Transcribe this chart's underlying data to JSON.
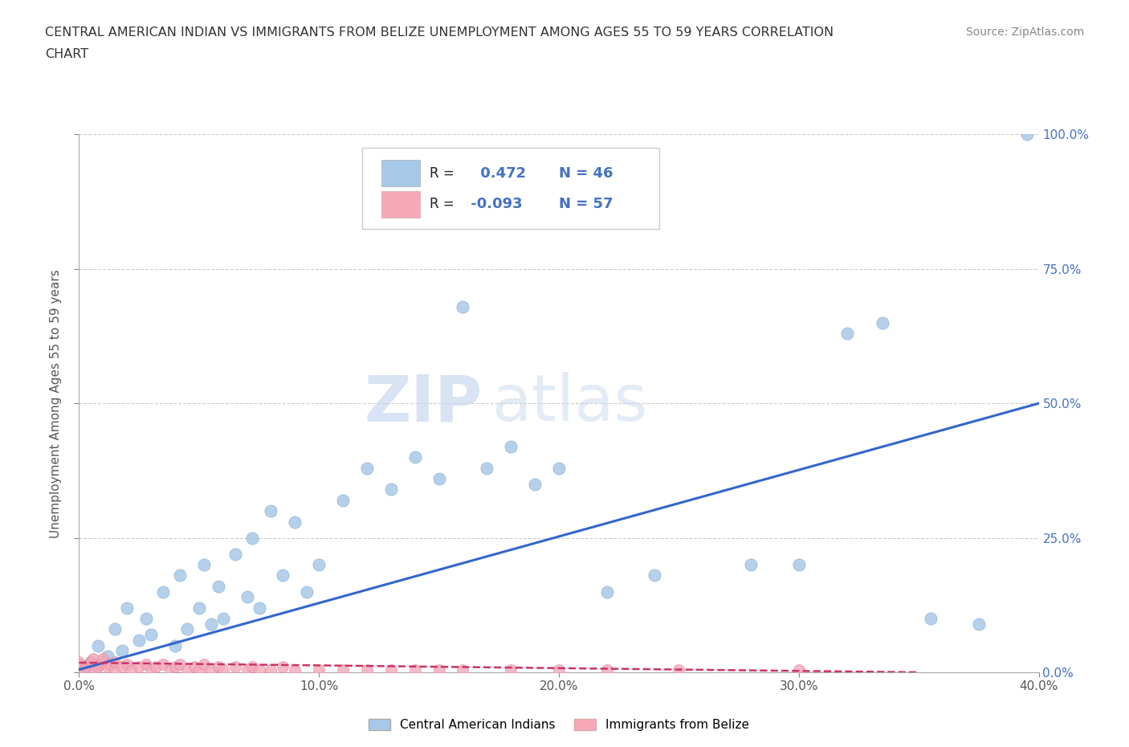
{
  "title_line1": "CENTRAL AMERICAN INDIAN VS IMMIGRANTS FROM BELIZE UNEMPLOYMENT AMONG AGES 55 TO 59 YEARS CORRELATION",
  "title_line2": "CHART",
  "source_text": "Source: ZipAtlas.com",
  "ylabel": "Unemployment Among Ages 55 to 59 years",
  "r_blue": 0.472,
  "n_blue": 46,
  "r_pink": -0.093,
  "n_pink": 57,
  "blue_color": "#a8c8e8",
  "pink_color": "#f4a8b8",
  "trend_blue_color": "#3366cc",
  "trend_pink_color": "#cc3366",
  "xlim": [
    0.0,
    0.4
  ],
  "ylim": [
    0.0,
    1.0
  ],
  "xtick_labels": [
    "0.0%",
    "10.0%",
    "20.0%",
    "30.0%",
    "40.0%"
  ],
  "xtick_vals": [
    0.0,
    0.1,
    0.2,
    0.3,
    0.4
  ],
  "ytick_labels": [
    "0.0%",
    "25.0%",
    "50.0%",
    "75.0%",
    "100.0%"
  ],
  "ytick_vals": [
    0.0,
    0.25,
    0.5,
    0.75,
    1.0
  ],
  "watermark_zip": "ZIP",
  "watermark_atlas": "atlas",
  "blue_scatter_x": [
    0.005,
    0.008,
    0.012,
    0.015,
    0.018,
    0.02,
    0.025,
    0.028,
    0.03,
    0.035,
    0.04,
    0.042,
    0.045,
    0.05,
    0.052,
    0.055,
    0.058,
    0.06,
    0.065,
    0.07,
    0.072,
    0.075,
    0.08,
    0.085,
    0.09,
    0.095,
    0.1,
    0.11,
    0.12,
    0.13,
    0.14,
    0.15,
    0.16,
    0.17,
    0.18,
    0.19,
    0.2,
    0.22,
    0.24,
    0.28,
    0.3,
    0.32,
    0.335,
    0.355,
    0.375,
    0.395
  ],
  "blue_scatter_y": [
    0.02,
    0.05,
    0.03,
    0.08,
    0.04,
    0.12,
    0.06,
    0.1,
    0.07,
    0.15,
    0.05,
    0.18,
    0.08,
    0.12,
    0.2,
    0.09,
    0.16,
    0.1,
    0.22,
    0.14,
    0.25,
    0.12,
    0.3,
    0.18,
    0.28,
    0.15,
    0.2,
    0.32,
    0.38,
    0.34,
    0.4,
    0.36,
    0.68,
    0.38,
    0.42,
    0.35,
    0.38,
    0.15,
    0.18,
    0.2,
    0.2,
    0.63,
    0.65,
    0.1,
    0.09,
    1.0
  ],
  "pink_scatter_x": [
    0.0,
    0.0,
    0.0,
    0.0,
    0.0,
    0.0,
    0.002,
    0.003,
    0.004,
    0.005,
    0.006,
    0.007,
    0.008,
    0.009,
    0.01,
    0.01,
    0.012,
    0.013,
    0.015,
    0.015,
    0.018,
    0.02,
    0.022,
    0.025,
    0.028,
    0.03,
    0.032,
    0.035,
    0.038,
    0.04,
    0.042,
    0.045,
    0.048,
    0.05,
    0.052,
    0.055,
    0.058,
    0.06,
    0.065,
    0.07,
    0.072,
    0.075,
    0.08,
    0.085,
    0.09,
    0.1,
    0.11,
    0.12,
    0.13,
    0.14,
    0.15,
    0.16,
    0.18,
    0.2,
    0.22,
    0.25,
    0.3
  ],
  "pink_scatter_y": [
    0.0,
    0.0,
    0.005,
    0.01,
    0.015,
    0.02,
    0.005,
    0.01,
    0.015,
    0.02,
    0.025,
    0.005,
    0.01,
    0.015,
    0.02,
    0.025,
    0.01,
    0.015,
    0.005,
    0.02,
    0.01,
    0.015,
    0.005,
    0.01,
    0.015,
    0.005,
    0.01,
    0.015,
    0.005,
    0.01,
    0.015,
    0.005,
    0.01,
    0.005,
    0.015,
    0.005,
    0.01,
    0.005,
    0.01,
    0.005,
    0.01,
    0.005,
    0.005,
    0.01,
    0.005,
    0.005,
    0.005,
    0.005,
    0.005,
    0.005,
    0.005,
    0.005,
    0.005,
    0.005,
    0.005,
    0.005,
    0.005
  ],
  "blue_trend_x0": 0.0,
  "blue_trend_y0": 0.005,
  "blue_trend_x1": 0.4,
  "blue_trend_y1": 0.5,
  "pink_trend_x0": 0.0,
  "pink_trend_y0": 0.018,
  "pink_trend_x1": 0.35,
  "pink_trend_y1": 0.0
}
